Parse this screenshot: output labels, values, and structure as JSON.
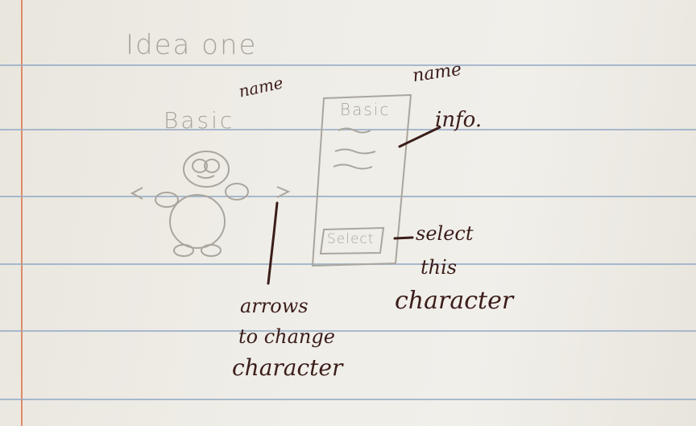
{
  "page_title": "Idea one",
  "character_view": {
    "name_text": "Basic",
    "name_annotation": "name"
  },
  "info_panel": {
    "name_text": "Basic",
    "select_label": "Select",
    "name_annotation": "name",
    "info_annotation": "info."
  },
  "annotations": {
    "select_note": [
      "select",
      "this",
      "character"
    ],
    "arrows_note": [
      "arrows",
      "to change",
      "character"
    ]
  },
  "colors": {
    "pencil": "#a9a59d",
    "ink": "#3b1d1a",
    "rule": "#8fa7c4",
    "margin": "#e08a6a"
  }
}
